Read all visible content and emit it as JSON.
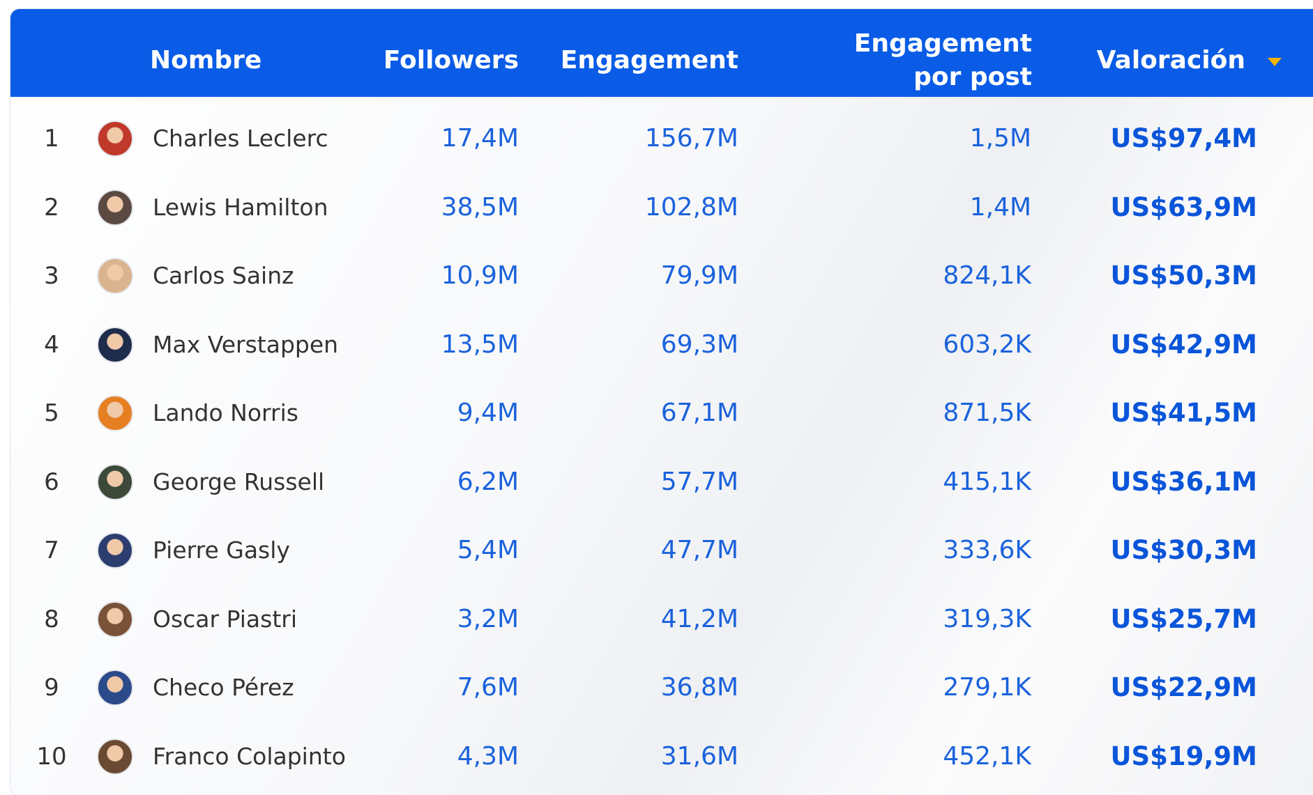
{
  "table": {
    "header": [
      "Nombre",
      "Followers",
      "Engagement",
      "Engagement por post",
      "Valoración"
    ],
    "rows": [
      [
        1,
        "Charles Leclerc",
        "17,4M",
        "156,7M",
        "1,5M",
        "US$97,4M"
      ],
      [
        2,
        "Lewis Hamilton",
        "38,5M",
        "102,8M",
        "1,4M",
        "US$63,9M"
      ],
      [
        3,
        "Carlos Sainz",
        "10,9M",
        "79,9M",
        "824,1K",
        "US$50,3M"
      ],
      [
        4,
        "Max Verstappen",
        "13,5M",
        "69,3M",
        "603,2K",
        "US$42,9M"
      ],
      [
        5,
        "Lando Norris",
        "9,4M",
        "67,1M",
        "871,5K",
        "US$41,5M"
      ],
      [
        6,
        "George Russell",
        "6,2M",
        "57,7M",
        "415,1K",
        "US$36,1M"
      ],
      [
        7,
        "Pierre Gasly",
        "5,4M",
        "47,7M",
        "333,6K",
        "US$30,3M"
      ],
      [
        8,
        "Oscar Piastri",
        "3,2M",
        "41,2M",
        "319,3K",
        "US$25,7M"
      ],
      [
        9,
        "Checo Pérez",
        "7,6M",
        "36,8M",
        "279,1K",
        "US$22,9M"
      ],
      [
        10,
        "Franco Colapinto",
        "4,3M",
        "31,6M",
        "452,1K",
        "US$19,9M"
      ]
    ]
  }
}
